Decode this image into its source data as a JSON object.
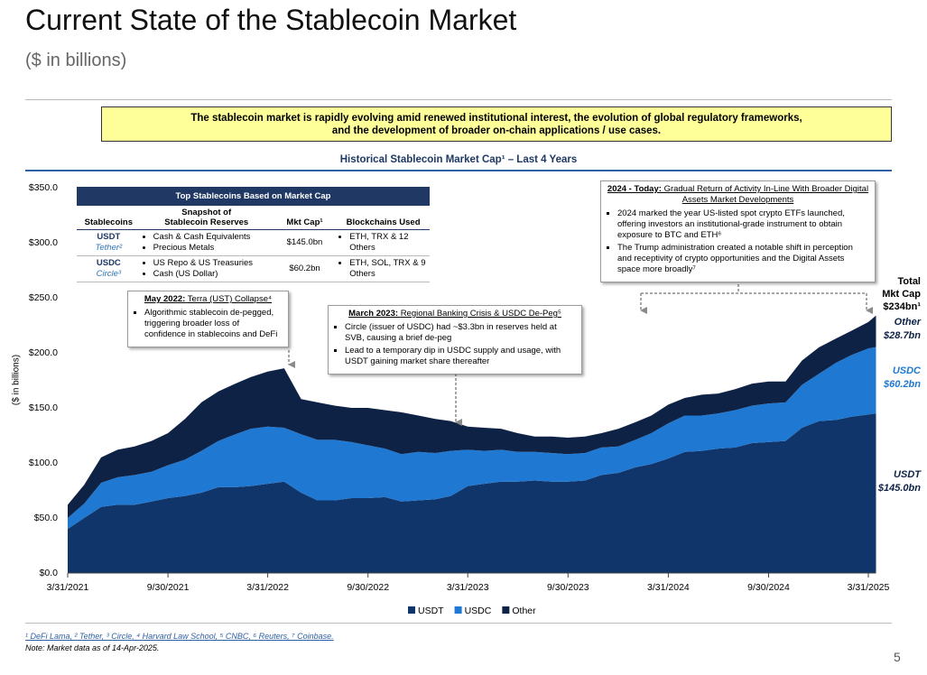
{
  "header": {
    "title": "Current State of the Stablecoin Market",
    "subtitle": "($ in billions)"
  },
  "callout": {
    "lines": [
      "The stablecoin market is rapidly evolving amid renewed institutional interest, the evolution of global regulatory frameworks,",
      "and the development of broader on-chain applications / use cases."
    ]
  },
  "chart_data": {
    "type": "stacked_area",
    "title": "Historical Stablecoin Market Cap¹ – Last 4 Years",
    "ylabel": "($ in billions)",
    "x": [
      "3/31/2021",
      "4/30/2021",
      "5/31/2021",
      "6/30/2021",
      "7/31/2021",
      "8/31/2021",
      "9/30/2021",
      "10/31/2021",
      "11/30/2021",
      "12/31/2021",
      "1/31/2022",
      "2/28/2022",
      "3/31/2022",
      "4/30/2022",
      "5/31/2022",
      "6/30/2022",
      "7/31/2022",
      "8/31/2022",
      "9/30/2022",
      "10/31/2022",
      "11/30/2022",
      "12/31/2022",
      "1/31/2023",
      "2/28/2023",
      "3/31/2023",
      "4/30/2023",
      "5/31/2023",
      "6/30/2023",
      "7/31/2023",
      "8/31/2023",
      "9/30/2023",
      "10/31/2023",
      "11/30/2023",
      "12/31/2023",
      "1/31/2024",
      "2/29/2024",
      "3/31/2024",
      "4/30/2024",
      "5/31/2024",
      "6/30/2024",
      "7/31/2024",
      "8/31/2024",
      "9/30/2024",
      "10/31/2024",
      "11/30/2024",
      "12/31/2024",
      "1/31/2025",
      "2/28/2025",
      "3/31/2025",
      "4/14/2025"
    ],
    "series": [
      {
        "name": "USDT",
        "color": "#10356a",
        "end_label": "$145.0bn",
        "label_color": "#0e2246",
        "values": [
          40,
          50,
          60,
          62,
          62,
          65,
          68,
          70,
          73,
          78,
          78,
          79,
          81,
          83,
          73,
          66,
          66,
          68,
          68,
          69,
          65,
          66,
          67,
          70,
          79,
          81,
          83,
          83,
          84,
          83,
          83,
          84,
          89,
          91,
          96,
          99,
          104,
          110,
          111,
          113,
          114,
          118,
          119,
          120,
          132,
          138,
          139,
          142,
          144,
          145
        ]
      },
      {
        "name": "USDC",
        "color": "#1f78d1",
        "end_label": "$60.2bn",
        "label_color": "#1f78d1",
        "values": [
          10,
          13,
          22,
          25,
          27,
          27,
          30,
          33,
          38,
          42,
          48,
          52,
          52,
          49,
          53,
          55,
          55,
          51,
          48,
          44,
          43,
          44,
          42,
          41,
          33,
          30,
          29,
          27,
          26,
          26,
          25,
          25,
          25,
          24,
          25,
          28,
          32,
          33,
          32,
          32,
          34,
          34,
          35,
          35,
          39,
          43,
          52,
          56,
          60,
          60.2
        ]
      },
      {
        "name": "Other",
        "color": "#0e2246",
        "end_label": "$28.7bn",
        "label_color": "#0e2246",
        "values": [
          12,
          17,
          23,
          25,
          26,
          28,
          29,
          37,
          44,
          45,
          46,
          47,
          50,
          54,
          32,
          34,
          31,
          31,
          34,
          35,
          38,
          33,
          31,
          27,
          21,
          21,
          19,
          17,
          14,
          15,
          15,
          15,
          13,
          16,
          16,
          16,
          17,
          16,
          19,
          18,
          19,
          20,
          20,
          19,
          22,
          24,
          22,
          22,
          24,
          28.7
        ]
      }
    ],
    "total_label": [
      "Total",
      "Mkt Cap"
    ],
    "total_value_label": "$234bn¹",
    "xlim": [
      "3/31/2021",
      "4/14/2025"
    ],
    "xticks": [
      "3/31/2021",
      "9/30/2021",
      "3/31/2022",
      "9/30/2022",
      "3/31/2023",
      "9/30/2023",
      "3/31/2024",
      "9/30/2024",
      "3/31/2025"
    ],
    "ylim": [
      0,
      350
    ],
    "yticks": [
      {
        "value": 0,
        "label": "$0.0"
      },
      {
        "value": 50,
        "label": "$50.0"
      },
      {
        "value": 100,
        "label": "$100.0"
      },
      {
        "value": 150,
        "label": "$150.0"
      },
      {
        "value": 200,
        "label": "$200.0"
      },
      {
        "value": 250,
        "label": "$250.0"
      },
      {
        "value": 300,
        "label": "$300.0"
      },
      {
        "value": 350,
        "label": "$350.0"
      }
    ],
    "grid": false
  },
  "table": {
    "title": "Top Stablecoins Based on Market Cap",
    "columns": [
      "Stablecoins",
      "Snapshot of Stablecoin Reserves",
      "Mkt Cap¹",
      "Blockchains Used"
    ],
    "rows": [
      {
        "ticker": "USDT",
        "issuer": "Tether²",
        "reserves": [
          "Cash & Cash Equivalents",
          "Precious Metals"
        ],
        "mkt_cap": "$145.0bn",
        "chains": "ETH, TRX & 12 Others"
      },
      {
        "ticker": "USDC",
        "issuer": "Circle³",
        "reserves": [
          "US Repo & US Treasuries",
          "Cash (US Dollar)"
        ],
        "mkt_cap": "$60.2bn",
        "chains": "ETH, SOL, TRX & 9 Others"
      }
    ]
  },
  "annotations": [
    {
      "title_lead": "May 2022:",
      "title": "Terra (UST) Collapse⁴",
      "bullets": [
        "Algorithmic stablecoin de-pegged, triggering broader loss of confidence in stablecoins and DeFi"
      ]
    },
    {
      "title_lead": "March 2023:",
      "title": "Regional Banking Crisis & USDC De-Peg⁵",
      "bullets": [
        "Circle (issuer of USDC) had ~$3.3bn in reserves held at SVB, causing a brief de-peg",
        "Lead to a temporary dip in USDC supply and usage, with USDT gaining market share thereafter"
      ]
    },
    {
      "title_lead": "2024 - Today:",
      "title": "Gradual Return of Activity In-Line With Broader Digital Assets Market Developments",
      "bullets": [
        "2024 marked the year US-listed spot crypto ETFs launched, offering investors an institutional-grade instrument to obtain exposure to BTC and ETH⁶",
        "The Trump administration created a notable shift in perception and receptivity of crypto opportunities and the Digital Assets space more broadly⁷"
      ]
    }
  ],
  "footnotes": "¹ DeFi Lama, ² Tether, ³ Circle, ⁴ Harvard Law School, ⁵ CNBC, ⁶ Reuters, ⁷ Coinbase.",
  "note": "Note: Market data as of 14-Apr-2025.",
  "page_number": "5"
}
